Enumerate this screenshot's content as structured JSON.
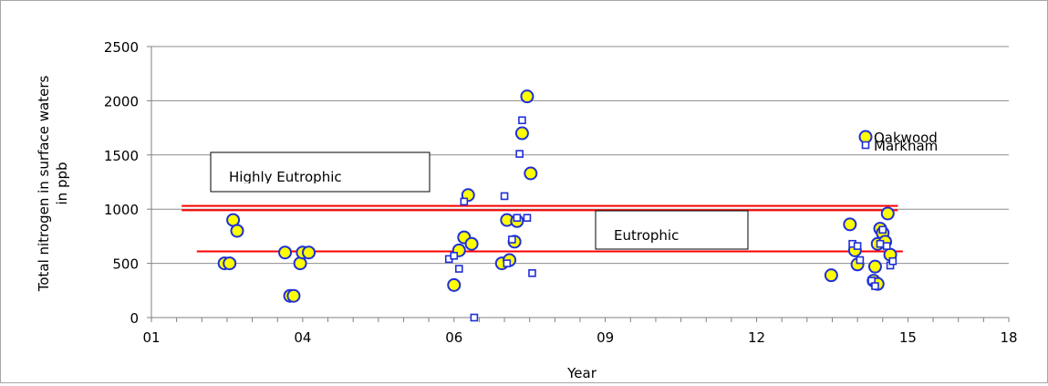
{
  "chart_data": {
    "type": "scatter",
    "xlabel": "Year",
    "ylabel": "Total nitrogen in surface waters in ppb",
    "ylabel_lines": [
      "Total nitrogen in surface waters",
      "in ppb"
    ],
    "xlim": [
      1,
      18
    ],
    "ylim": [
      0,
      2500
    ],
    "x_ticks": [
      1,
      4,
      7,
      10,
      13,
      16,
      19
    ],
    "x_tick_labels": [
      "01",
      "04",
      "06",
      "09",
      "12",
      "15",
      "18"
    ],
    "y_ticks": [
      0,
      500,
      1000,
      1500,
      2000,
      2500
    ],
    "y_tick_labels": [
      "0",
      "500",
      "1000",
      "1500",
      "2000",
      "2500"
    ],
    "grid": "horizontal",
    "legend_position": "right",
    "series": [
      {
        "name": "Oakwood",
        "marker": "circle",
        "fill": "#ffff00",
        "stroke": "#1f2fd6",
        "points": [
          [
            2.45,
            500
          ],
          [
            2.55,
            500
          ],
          [
            2.62,
            900
          ],
          [
            2.7,
            800
          ],
          [
            3.65,
            600
          ],
          [
            3.75,
            200
          ],
          [
            3.82,
            200
          ],
          [
            3.95,
            500
          ],
          [
            4.0,
            600
          ],
          [
            4.12,
            600
          ],
          [
            7.0,
            300
          ],
          [
            7.1,
            620
          ],
          [
            7.2,
            740
          ],
          [
            7.28,
            1130
          ],
          [
            7.35,
            680
          ],
          [
            7.95,
            500
          ],
          [
            8.05,
            900
          ],
          [
            8.1,
            530
          ],
          [
            8.2,
            700
          ],
          [
            8.25,
            890
          ],
          [
            8.35,
            1700
          ],
          [
            8.45,
            2040
          ],
          [
            8.52,
            1330
          ],
          [
            14.48,
            390
          ],
          [
            14.85,
            860
          ],
          [
            14.95,
            620
          ],
          [
            15.0,
            490
          ],
          [
            15.35,
            470
          ],
          [
            15.4,
            680
          ],
          [
            15.45,
            820
          ],
          [
            15.5,
            780
          ],
          [
            15.55,
            700
          ],
          [
            15.6,
            960
          ],
          [
            15.65,
            580
          ],
          [
            15.32,
            340
          ],
          [
            15.4,
            310
          ]
        ]
      },
      {
        "name": "Markham",
        "marker": "square",
        "fill": "#ffffff",
        "stroke": "#1f2fd6",
        "points": [
          [
            6.9,
            540
          ],
          [
            7.0,
            570
          ],
          [
            7.1,
            450
          ],
          [
            7.2,
            1070
          ],
          [
            7.4,
            0
          ],
          [
            8.0,
            1120
          ],
          [
            8.05,
            500
          ],
          [
            8.15,
            720
          ],
          [
            8.25,
            920
          ],
          [
            8.3,
            1510
          ],
          [
            8.35,
            1820
          ],
          [
            8.45,
            920
          ],
          [
            8.55,
            410
          ],
          [
            14.9,
            680
          ],
          [
            15.0,
            660
          ],
          [
            15.05,
            530
          ],
          [
            15.28,
            340
          ],
          [
            15.35,
            290
          ],
          [
            15.45,
            680
          ],
          [
            15.5,
            810
          ],
          [
            15.58,
            660
          ],
          [
            15.65,
            480
          ],
          [
            15.7,
            520
          ]
        ]
      }
    ],
    "reference_lines": [
      {
        "value": 1030,
        "color": "#ff0000"
      },
      {
        "value": 990,
        "color": "#ff0000"
      },
      {
        "value": 610,
        "color": "#ff0000"
      }
    ],
    "annotations": [
      {
        "text": "Highly Eutrophic"
      },
      {
        "text": "Eutrophic"
      }
    ]
  }
}
